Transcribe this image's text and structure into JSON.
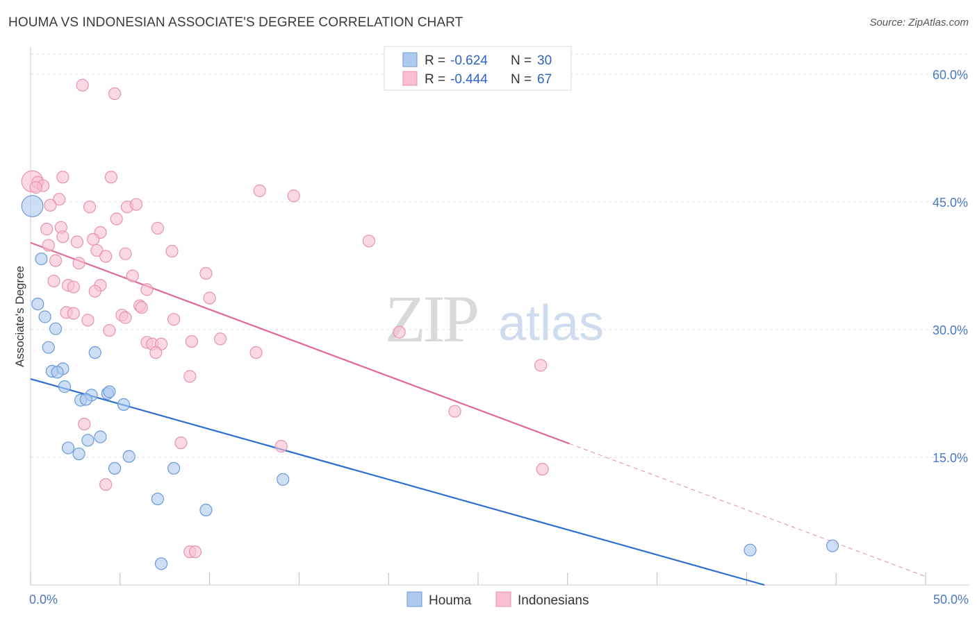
{
  "title": "HOUMA VS INDONESIAN ASSOCIATE'S DEGREE CORRELATION CHART",
  "source": "Source: ZipAtlas.com",
  "watermark": {
    "zip": "ZIP",
    "atlas": "atlas"
  },
  "colors": {
    "houma_fill": "#aec8ee",
    "houma_stroke": "#6a9ad8",
    "houma_line": "#2c6fd0",
    "indo_fill": "#f8bfd0",
    "indo_stroke": "#e892ad",
    "indo_line": "#e06a94",
    "grid": "#dddddd",
    "axis_label": "#4a78c2"
  },
  "legend": {
    "rows": [
      {
        "r_label": "R =",
        "r_value": "-0.624",
        "n_label": "N =",
        "n_value": "30"
      },
      {
        "r_label": "R =",
        "r_value": "-0.444",
        "n_label": "N =",
        "n_value": "67"
      }
    ]
  },
  "chart_data": {
    "type": "scatter",
    "ylabel": "Associate's Degree",
    "xlim": [
      0,
      50
    ],
    "ylim": [
      0,
      63
    ],
    "x_tick_labels": [
      {
        "value": 0,
        "label": "0.0%"
      },
      {
        "value": 50,
        "label": "50.0%"
      }
    ],
    "y_tick_labels": [
      {
        "value": 15,
        "label": "15.0%"
      },
      {
        "value": 30,
        "label": "30.0%"
      },
      {
        "value": 45,
        "label": "45.0%"
      },
      {
        "value": 60,
        "label": "60.0%"
      }
    ],
    "x_minor_ticks": [
      0,
      5,
      10,
      15,
      20,
      25,
      30,
      35,
      40,
      45,
      50
    ],
    "series": [
      {
        "name": "Houma",
        "r": -0.624,
        "n": 30,
        "trend": {
          "x0": 0,
          "y0": 24.2,
          "x1": 41,
          "y1": 0
        },
        "points": [
          [
            0.1,
            44.5,
            1.8
          ],
          [
            0.6,
            38.3,
            1
          ],
          [
            0.4,
            33.0,
            1
          ],
          [
            0.8,
            31.5,
            1
          ],
          [
            1.4,
            30.1,
            1
          ],
          [
            1.0,
            27.9,
            1
          ],
          [
            3.6,
            27.3,
            1
          ],
          [
            1.8,
            25.4,
            1
          ],
          [
            1.2,
            25.1,
            1
          ],
          [
            1.5,
            25.0,
            1
          ],
          [
            1.9,
            23.3,
            1
          ],
          [
            3.4,
            22.3,
            1
          ],
          [
            4.3,
            22.5,
            1
          ],
          [
            4.4,
            22.7,
            1
          ],
          [
            2.8,
            21.7,
            1
          ],
          [
            3.1,
            21.8,
            1
          ],
          [
            5.2,
            21.2,
            1
          ],
          [
            3.9,
            17.4,
            1
          ],
          [
            3.2,
            17.0,
            1
          ],
          [
            2.1,
            16.1,
            1
          ],
          [
            2.7,
            15.4,
            1
          ],
          [
            5.5,
            15.1,
            1
          ],
          [
            4.7,
            13.7,
            1
          ],
          [
            8.0,
            13.7,
            1
          ],
          [
            14.1,
            12.4,
            1
          ],
          [
            7.1,
            10.1,
            1
          ],
          [
            9.8,
            8.8,
            1
          ],
          [
            40.2,
            4.1,
            1
          ],
          [
            44.8,
            4.6,
            1
          ],
          [
            7.3,
            2.5,
            1
          ]
        ]
      },
      {
        "name": "Indonesians",
        "r": -0.444,
        "n": 67,
        "trend": {
          "x0": 0,
          "y0": 40.2,
          "x1": 30.1,
          "y1": 16.6
        },
        "trend_dashed": {
          "x0": 30.1,
          "y0": 16.6,
          "x1": 50,
          "y1": 1.0
        },
        "points": [
          [
            0.1,
            47.4,
            1.8
          ],
          [
            2.9,
            58.7,
            1
          ],
          [
            4.7,
            57.7,
            1
          ],
          [
            0.4,
            47.3,
            1
          ],
          [
            0.7,
            46.9,
            1
          ],
          [
            0.3,
            46.7,
            1
          ],
          [
            1.8,
            47.9,
            1
          ],
          [
            4.5,
            47.9,
            1
          ],
          [
            12.8,
            46.3,
            1
          ],
          [
            14.7,
            45.7,
            1
          ],
          [
            1.6,
            45.3,
            1
          ],
          [
            1.1,
            44.6,
            1
          ],
          [
            3.3,
            44.4,
            1
          ],
          [
            5.4,
            44.4,
            1
          ],
          [
            5.9,
            44.7,
            1
          ],
          [
            4.8,
            43.0,
            1
          ],
          [
            1.7,
            42.0,
            1
          ],
          [
            0.9,
            41.8,
            1
          ],
          [
            7.1,
            41.9,
            1
          ],
          [
            3.9,
            41.4,
            1
          ],
          [
            1.8,
            40.9,
            1
          ],
          [
            3.5,
            40.6,
            1
          ],
          [
            2.6,
            40.3,
            1
          ],
          [
            1.0,
            39.9,
            1
          ],
          [
            18.9,
            40.4,
            1
          ],
          [
            3.7,
            39.3,
            1
          ],
          [
            7.9,
            39.2,
            1
          ],
          [
            5.3,
            38.9,
            1
          ],
          [
            4.2,
            38.6,
            1
          ],
          [
            1.4,
            38.1,
            1
          ],
          [
            2.7,
            37.8,
            1
          ],
          [
            9.8,
            36.6,
            1
          ],
          [
            5.7,
            36.3,
            1
          ],
          [
            1.3,
            35.7,
            1
          ],
          [
            2.1,
            35.2,
            1
          ],
          [
            2.4,
            35.0,
            1
          ],
          [
            3.9,
            35.2,
            1
          ],
          [
            3.6,
            34.5,
            1
          ],
          [
            6.5,
            34.7,
            1
          ],
          [
            10.0,
            33.7,
            1
          ],
          [
            6.1,
            32.8,
            1
          ],
          [
            6.2,
            32.6,
            1
          ],
          [
            2.0,
            32.0,
            1
          ],
          [
            2.4,
            31.9,
            1
          ],
          [
            5.1,
            31.7,
            1
          ],
          [
            5.3,
            31.4,
            1
          ],
          [
            3.2,
            31.1,
            1
          ],
          [
            8.0,
            31.2,
            1
          ],
          [
            4.4,
            29.9,
            1
          ],
          [
            20.6,
            29.7,
            1
          ],
          [
            10.6,
            28.9,
            1
          ],
          [
            9.0,
            28.6,
            1
          ],
          [
            6.5,
            28.5,
            1
          ],
          [
            6.8,
            28.3,
            1
          ],
          [
            7.3,
            28.3,
            1
          ],
          [
            7.0,
            27.3,
            1
          ],
          [
            12.6,
            27.3,
            1
          ],
          [
            28.5,
            25.8,
            1
          ],
          [
            8.9,
            24.5,
            1
          ],
          [
            23.7,
            20.4,
            1
          ],
          [
            3.0,
            18.9,
            1
          ],
          [
            8.4,
            16.7,
            1
          ],
          [
            14.0,
            16.3,
            1
          ],
          [
            28.6,
            13.6,
            1
          ],
          [
            4.2,
            11.8,
            1
          ],
          [
            8.9,
            3.9,
            1
          ],
          [
            9.2,
            3.9,
            1
          ]
        ]
      }
    ]
  }
}
